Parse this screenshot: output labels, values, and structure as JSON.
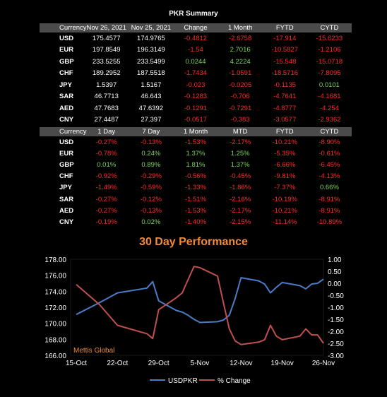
{
  "summary_title": "PKR Summary",
  "table1": {
    "headers": [
      "Currency",
      "Nov 26, 2021",
      "Nov 25, 2021",
      "Change",
      "1 Month",
      "FYTD",
      "CYTD"
    ],
    "rows": [
      [
        "USD",
        "175.4577",
        "174.9765",
        "-0.4812",
        "-2.6758",
        "-17.914",
        "-15.6233"
      ],
      [
        "EUR",
        "197.8549",
        "196.3149",
        "-1.54",
        "2.7016",
        "-10.5827",
        "-1.2106"
      ],
      [
        "GBP",
        "233.5255",
        "233.5499",
        "0.0244",
        "4.2224",
        "-15.548",
        "-15.0718"
      ],
      [
        "CHF",
        "189.2952",
        "187.5518",
        "-1.7434",
        "-1.0591",
        "-18.5716",
        "-7.8095"
      ],
      [
        "JPY",
        "1.5397",
        "1.5167",
        "-0.023",
        "-0.0205",
        "-0.1135",
        "0.0101"
      ],
      [
        "SAR",
        "46.7713",
        "46.643",
        "-0.1283",
        "-0.706",
        "-4.7641",
        "-4.1681"
      ],
      [
        "AED",
        "47.7683",
        "47.6392",
        "-0.1291",
        "-0.7291",
        "-4.8777",
        "-4.254"
      ],
      [
        "CNY",
        "27.4487",
        "27.397",
        "-0.0517",
        "-0.383",
        "-3.0577",
        "-2.9362"
      ]
    ]
  },
  "table2": {
    "headers": [
      "Currency",
      "1 Day",
      "7 Day",
      "1 Month",
      "MTD",
      "FYTD",
      "CYTD"
    ],
    "rows": [
      [
        "USD",
        "-0.27%",
        "-0.13%",
        "-1.53%",
        "-2.17%",
        "-10.21%",
        "-8.90%"
      ],
      [
        "EUR",
        "-0.78%",
        "0.24%",
        "1.37%",
        "1.25%",
        "-5.35%",
        "-0.61%"
      ],
      [
        "GBP",
        "0.01%",
        "0.89%",
        "1.81%",
        "1.37%",
        "-6.66%",
        "-6.45%"
      ],
      [
        "CHF",
        "-0.92%",
        "-0.29%",
        "-0.56%",
        "-0.45%",
        "-9.81%",
        "-4.13%"
      ],
      [
        "JPY",
        "-1.49%",
        "-0.59%",
        "-1.33%",
        "-1.86%",
        "-7.37%",
        "0.66%"
      ],
      [
        "SAR",
        "-0.27%",
        "-0.12%",
        "-1.51%",
        "-2.16%",
        "-10.19%",
        "-8.91%"
      ],
      [
        "AED",
        "-0.27%",
        "-0.13%",
        "-1.53%",
        "-2.17%",
        "-10.21%",
        "-8.91%"
      ],
      [
        "CNY",
        "-0.19%",
        "0.02%",
        "-1.40%",
        "-2.15%",
        "-11.14%",
        "-10.89%"
      ]
    ]
  },
  "colors": {
    "negative": "#ff2a2a",
    "positive": "#7dd35a",
    "series1": "#4a7cc7",
    "series2": "#c0504d",
    "header_bg": "#4b4b4b",
    "title_accent": "#f28a3a"
  },
  "chart_data": {
    "type": "line",
    "title": "30 Day Performance",
    "watermark": "Mettis Global",
    "x_ticks": [
      "15-Oct",
      "22-Oct",
      "29-Oct",
      "5-Nov",
      "12-Nov",
      "19-Nov",
      "26-Nov"
    ],
    "y_left": {
      "ylim": [
        166,
        178
      ],
      "ticks": [
        "166.00",
        "168.00",
        "170.00",
        "172.00",
        "174.00",
        "176.00",
        "178.00"
      ]
    },
    "y_right": {
      "ylim": [
        -3.0,
        1.0
      ],
      "ticks": [
        "-3.00",
        "-2.50",
        "-2.00",
        "-1.50",
        "-1.00",
        "-0.50",
        "0.00",
        "0.50",
        "1.00"
      ]
    },
    "legend_position": "bottom",
    "series": [
      {
        "name": "USDPKR",
        "axis": "left",
        "x": [
          "15-Oct",
          "19-Oct",
          "22-Oct",
          "27-Oct",
          "28-Oct",
          "29-Oct",
          "1-Nov",
          "2-Nov",
          "3-Nov",
          "4-Nov",
          "5-Nov",
          "8-Nov",
          "9-Nov",
          "10-Nov",
          "11-Nov",
          "12-Nov",
          "15-Nov",
          "16-Nov",
          "17-Nov",
          "18-Nov",
          "19-Nov",
          "22-Nov",
          "23-Nov",
          "24-Nov",
          "25-Nov",
          "26-Nov"
        ],
        "values": [
          171.1,
          172.6,
          173.8,
          174.4,
          175.2,
          172.8,
          171.6,
          171.4,
          171.0,
          170.5,
          170.1,
          170.2,
          170.4,
          171.0,
          173.1,
          175.7,
          175.3,
          174.9,
          173.8,
          174.5,
          175.1,
          174.7,
          174.3,
          174.9,
          175.0,
          175.5
        ]
      },
      {
        "name": "% Change",
        "axis": "right",
        "x": [
          "15-Oct",
          "19-Oct",
          "22-Oct",
          "27-Oct",
          "28-Oct",
          "29-Oct",
          "1-Nov",
          "2-Nov",
          "3-Nov",
          "4-Nov",
          "5-Nov",
          "8-Nov",
          "9-Nov",
          "10-Nov",
          "11-Nov",
          "12-Nov",
          "15-Nov",
          "16-Nov",
          "17-Nov",
          "18-Nov",
          "19-Nov",
          "22-Nov",
          "23-Nov",
          "24-Nov",
          "25-Nov",
          "26-Nov"
        ],
        "values": [
          -0.05,
          -0.9,
          -1.75,
          -2.1,
          -2.3,
          -1.1,
          -0.6,
          -0.4,
          0.15,
          0.7,
          0.65,
          0.3,
          -0.8,
          -1.9,
          -2.4,
          -2.55,
          -2.45,
          -2.35,
          -1.75,
          -2.2,
          -2.35,
          -2.2,
          -1.9,
          -2.15,
          -2.15,
          -2.5
        ]
      }
    ]
  }
}
